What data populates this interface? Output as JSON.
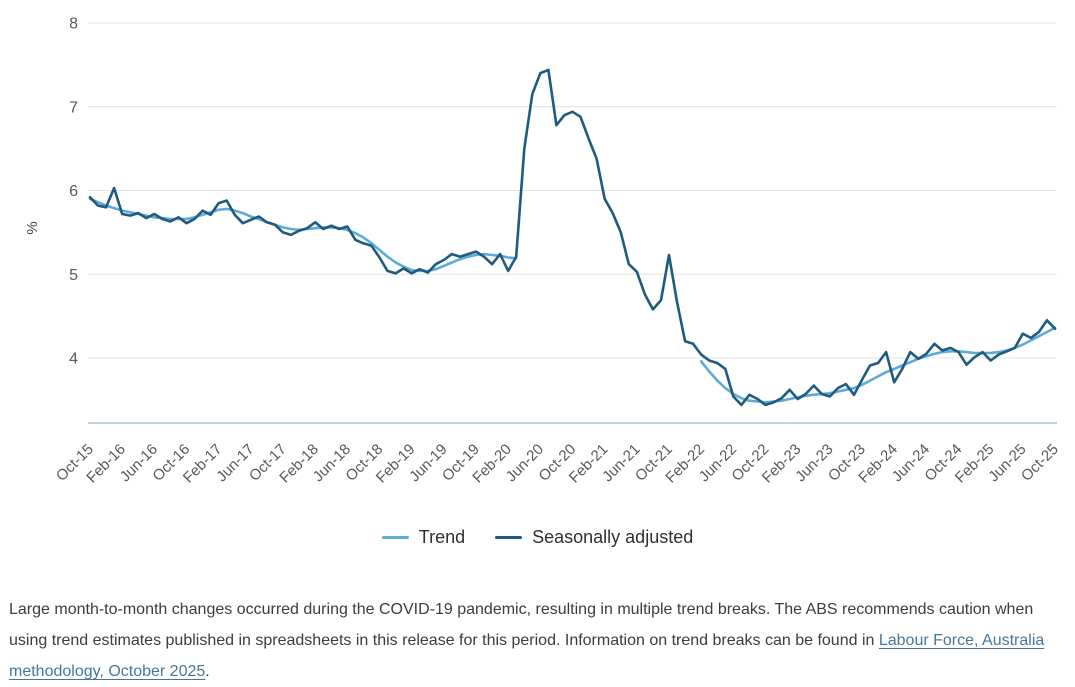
{
  "chart": {
    "y_axis_title": "%",
    "y_tick_labels": [
      "8",
      "7",
      "6",
      "5",
      "4"
    ],
    "x_tick_labels": [
      "Oct-15",
      "Feb-16",
      "Jun-16",
      "Oct-16",
      "Feb-17",
      "Jun-17",
      "Oct-17",
      "Feb-18",
      "Jun-18",
      "Oct-18",
      "Feb-19",
      "Jun-19",
      "Oct-19",
      "Feb-20",
      "Jun-20",
      "Oct-20",
      "Feb-21",
      "Jun-21",
      "Oct-21",
      "Feb-22",
      "Jun-22",
      "Oct-22",
      "Feb-23",
      "Jun-23",
      "Oct-23",
      "Feb-24",
      "Jun-24",
      "Oct-24",
      "Feb-25",
      "Jun-25",
      "Oct-25"
    ],
    "legend": [
      {
        "label": "Trend",
        "color": "#5fabd5"
      },
      {
        "label": "Seasonally adjusted",
        "color": "#1e5b7d"
      }
    ],
    "colors": {
      "gridline": "#e4e4e4",
      "axis_baseline": "#aac7d4",
      "tick_text": "#595959",
      "axis_title_text": "#454545"
    }
  },
  "chart_data": {
    "type": "line",
    "ylabel": "%",
    "xlabel": "",
    "ylim": [
      3.22,
      8
    ],
    "y_ticks": [
      8,
      7,
      6,
      5,
      4
    ],
    "grid": true,
    "legend_position": "bottom",
    "x_tick_every": 4,
    "x": [
      "Oct-15",
      "Nov-15",
      "Dec-15",
      "Jan-16",
      "Feb-16",
      "Mar-16",
      "Apr-16",
      "May-16",
      "Jun-16",
      "Jul-16",
      "Aug-16",
      "Sep-16",
      "Oct-16",
      "Nov-16",
      "Dec-16",
      "Jan-17",
      "Feb-17",
      "Mar-17",
      "Apr-17",
      "May-17",
      "Jun-17",
      "Jul-17",
      "Aug-17",
      "Sep-17",
      "Oct-17",
      "Nov-17",
      "Dec-17",
      "Jan-18",
      "Feb-18",
      "Mar-18",
      "Apr-18",
      "May-18",
      "Jun-18",
      "Jul-18",
      "Aug-18",
      "Sep-18",
      "Oct-18",
      "Nov-18",
      "Dec-18",
      "Jan-19",
      "Feb-19",
      "Mar-19",
      "Apr-19",
      "May-19",
      "Jun-19",
      "Jul-19",
      "Aug-19",
      "Sep-19",
      "Oct-19",
      "Nov-19",
      "Dec-19",
      "Jan-20",
      "Feb-20",
      "Mar-20",
      "Apr-20",
      "May-20",
      "Jun-20",
      "Jul-20",
      "Aug-20",
      "Sep-20",
      "Oct-20",
      "Nov-20",
      "Dec-20",
      "Jan-21",
      "Feb-21",
      "Mar-21",
      "Apr-21",
      "May-21",
      "Jun-21",
      "Jul-21",
      "Aug-21",
      "Sep-21",
      "Oct-21",
      "Nov-21",
      "Dec-21",
      "Jan-22",
      "Feb-22",
      "Mar-22",
      "Apr-22",
      "May-22",
      "Jun-22",
      "Jul-22",
      "Aug-22",
      "Sep-22",
      "Oct-22",
      "Nov-22",
      "Dec-22",
      "Jan-23",
      "Feb-23",
      "Mar-23",
      "Apr-23",
      "May-23",
      "Jun-23",
      "Jul-23",
      "Aug-23",
      "Sep-23",
      "Oct-23",
      "Nov-23",
      "Dec-23",
      "Jan-24",
      "Feb-24",
      "Mar-24",
      "Apr-24",
      "May-24",
      "Jun-24",
      "Jul-24",
      "Aug-24",
      "Sep-24",
      "Oct-24",
      "Nov-24",
      "Dec-24",
      "Jan-25",
      "Feb-25",
      "Mar-25",
      "Apr-25",
      "May-25",
      "Jun-25",
      "Jul-25",
      "Aug-25",
      "Sep-25",
      "Oct-25"
    ],
    "series": [
      {
        "name": "Trend",
        "color": "#5fabd5",
        "values": [
          5.9,
          5.86,
          5.82,
          5.79,
          5.76,
          5.74,
          5.72,
          5.7,
          5.68,
          5.67,
          5.66,
          5.66,
          5.66,
          5.68,
          5.71,
          5.74,
          5.77,
          5.78,
          5.76,
          5.73,
          5.69,
          5.66,
          5.62,
          5.59,
          5.56,
          5.54,
          5.53,
          5.54,
          5.55,
          5.56,
          5.56,
          5.55,
          5.53,
          5.49,
          5.44,
          5.37,
          5.29,
          5.21,
          5.14,
          5.09,
          5.05,
          5.04,
          5.04,
          5.06,
          5.1,
          5.14,
          5.18,
          5.21,
          5.23,
          5.24,
          5.23,
          5.22,
          5.2,
          5.19,
          null,
          null,
          null,
          null,
          null,
          null,
          null,
          null,
          null,
          null,
          null,
          null,
          null,
          null,
          null,
          null,
          null,
          null,
          null,
          null,
          null,
          null,
          3.96,
          3.84,
          3.73,
          3.64,
          3.57,
          3.52,
          3.49,
          3.48,
          3.47,
          3.48,
          3.49,
          3.51,
          3.53,
          3.55,
          3.56,
          3.57,
          3.58,
          3.6,
          3.62,
          3.64,
          3.68,
          3.73,
          3.78,
          3.83,
          3.87,
          3.91,
          3.95,
          3.99,
          4.02,
          4.05,
          4.07,
          4.08,
          4.08,
          4.07,
          4.06,
          4.06,
          4.06,
          4.07,
          4.09,
          4.12,
          4.16,
          4.21,
          4.26,
          4.31,
          4.36
        ]
      },
      {
        "name": "Seasonally adjusted",
        "color": "#1e5b7d",
        "values": [
          5.92,
          5.82,
          5.8,
          6.03,
          5.72,
          5.7,
          5.73,
          5.67,
          5.72,
          5.66,
          5.63,
          5.68,
          5.61,
          5.66,
          5.76,
          5.71,
          5.85,
          5.88,
          5.71,
          5.61,
          5.65,
          5.69,
          5.62,
          5.59,
          5.5,
          5.47,
          5.52,
          5.55,
          5.62,
          5.54,
          5.58,
          5.54,
          5.57,
          5.41,
          5.37,
          5.34,
          5.2,
          5.04,
          5.01,
          5.07,
          5.01,
          5.06,
          5.02,
          5.12,
          5.17,
          5.24,
          5.21,
          5.24,
          5.27,
          5.21,
          5.12,
          5.24,
          5.04,
          5.21,
          6.5,
          7.15,
          7.4,
          7.44,
          6.78,
          6.9,
          6.94,
          6.88,
          6.62,
          6.38,
          5.9,
          5.73,
          5.5,
          5.12,
          5.03,
          4.76,
          4.58,
          4.69,
          5.23,
          4.67,
          4.2,
          4.17,
          4.04,
          3.97,
          3.94,
          3.87,
          3.54,
          3.44,
          3.56,
          3.51,
          3.44,
          3.47,
          3.52,
          3.62,
          3.51,
          3.57,
          3.67,
          3.57,
          3.54,
          3.64,
          3.69,
          3.56,
          3.74,
          3.91,
          3.94,
          4.07,
          3.71,
          3.87,
          4.07,
          3.99,
          4.05,
          4.17,
          4.09,
          4.12,
          4.07,
          3.92,
          4.01,
          4.07,
          3.97,
          4.04,
          4.08,
          4.12,
          4.29,
          4.24,
          4.31,
          4.45,
          4.35
        ]
      }
    ]
  },
  "caption": {
    "text_before_link": "Large month-to-month changes occurred during the COVID-19 pandemic, resulting in multiple trend breaks. The ABS recommends caution when using trend estimates published in spreadsheets in this release for this period. Information on trend breaks can be found in ",
    "link_text": "Labour Force, Australia methodology, October 2025",
    "text_after_link": "."
  }
}
